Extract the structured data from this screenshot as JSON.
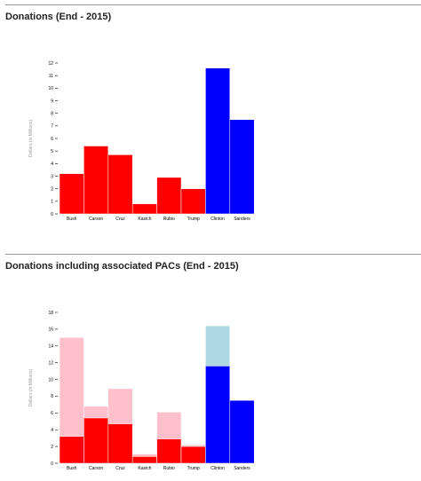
{
  "charts": {
    "donations": {
      "title": "Donations (End - 2015)"
    },
    "donations_pacs": {
      "title": "Donations including associated PACs (End - 2015)"
    }
  },
  "colors": {
    "republican": "#ff0000",
    "democrat": "#0000ff",
    "republican_pac": "#ffc0cb",
    "democrat_pac": "#add8e6",
    "bar_stroke": "#ffffff"
  },
  "chart_data": [
    {
      "type": "bar",
      "title": "Donations (End - 2015)",
      "ylabel": "Dollars (in Millions)",
      "xlabel": "",
      "categories": [
        "Bush",
        "Carson",
        "Cruz",
        "Kasich",
        "Rubio",
        "Trump",
        "Clinton",
        "Sanders"
      ],
      "party": [
        "R",
        "R",
        "R",
        "R",
        "R",
        "R",
        "D",
        "D"
      ],
      "values": [
        3.2,
        5.4,
        4.7,
        0.8,
        2.9,
        2.0,
        11.6,
        7.5
      ],
      "ylim": [
        0,
        12
      ],
      "yticks": [
        0,
        1,
        2,
        3,
        4,
        5,
        6,
        7,
        8,
        9,
        10,
        11,
        12
      ],
      "grid": false
    },
    {
      "type": "bar",
      "title": "Donations including associated PACs (End - 2015)",
      "ylabel": "Dollars (in Millions)",
      "xlabel": "",
      "categories": [
        "Bush",
        "Carson",
        "Cruz",
        "Kasich",
        "Rubio",
        "Trump",
        "Clinton",
        "Sanders"
      ],
      "party": [
        "R",
        "R",
        "R",
        "R",
        "R",
        "R",
        "D",
        "D"
      ],
      "series": [
        {
          "values": [
            3.2,
            5.4,
            4.7,
            0.8,
            2.9,
            2.0,
            11.6,
            7.5
          ]
        },
        {
          "values": [
            15.0,
            6.8,
            8.9,
            1.1,
            6.1,
            2.2,
            16.4,
            7.5
          ]
        }
      ],
      "ylim": [
        0,
        18
      ],
      "yticks": [
        0,
        2,
        4,
        6,
        8,
        10,
        12,
        14,
        16,
        18
      ],
      "grid": false
    }
  ]
}
